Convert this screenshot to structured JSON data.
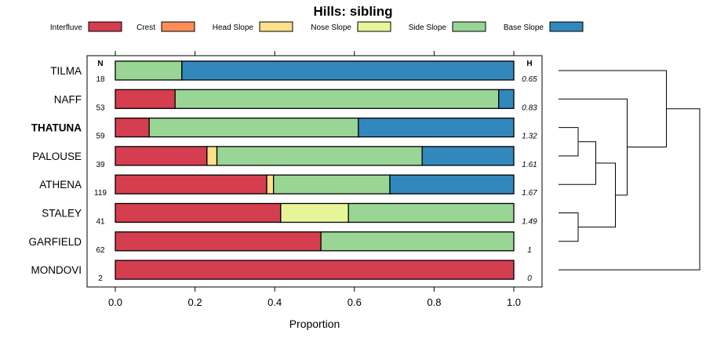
{
  "chart_data": {
    "type": "bar",
    "orientation": "horizontal",
    "stacked": true,
    "title": "Hills: sibling",
    "xlabel": "Proportion",
    "ylabel": "",
    "xlim": [
      0,
      1
    ],
    "x_ticks": [
      "0.0",
      "0.2",
      "0.4",
      "0.6",
      "0.8",
      "1.0"
    ],
    "legend_position": "top",
    "n_header": "N",
    "h_header": "H",
    "categories": [
      "TILMA",
      "NAFF",
      "THATUNA",
      "PALOUSE",
      "ATHENA",
      "STALEY",
      "GARFIELD",
      "MONDOVI"
    ],
    "emphasized_category": "THATUNA",
    "n_values": [
      "18",
      "53",
      "59",
      "39",
      "119",
      "41",
      "62",
      "2"
    ],
    "h_values": [
      "0.65",
      "0.83",
      "1.32",
      "1.61",
      "1.67",
      "1.49",
      "1",
      "0"
    ],
    "series": [
      {
        "name": "Interfluve",
        "color": "#d53e4f",
        "values": [
          0,
          0.15,
          0.085,
          0.23,
          0.38,
          0.415,
          0.516,
          1.0
        ]
      },
      {
        "name": "Crest",
        "color": "#fc8d59",
        "values": [
          0,
          0,
          0,
          0,
          0,
          0,
          0,
          0
        ]
      },
      {
        "name": "Head Slope",
        "color": "#fee08b",
        "values": [
          0,
          0,
          0,
          0.025,
          0.017,
          0,
          0,
          0
        ]
      },
      {
        "name": "Nose Slope",
        "color": "#e6f598",
        "values": [
          0,
          0,
          0,
          0,
          0,
          0.17,
          0,
          0
        ]
      },
      {
        "name": "Side Slope",
        "color": "#99d594",
        "values": [
          0.167,
          0.812,
          0.525,
          0.515,
          0.292,
          0.415,
          0.484,
          0
        ]
      },
      {
        "name": "Base Slope",
        "color": "#3288bd",
        "values": [
          0.833,
          0.038,
          0.39,
          0.23,
          0.311,
          0,
          0,
          0
        ]
      }
    ],
    "dendrogram": {
      "leaf_order": [
        "TILMA",
        "NAFF",
        "THATUNA",
        "PALOUSE",
        "ATHENA",
        "STALEY",
        "GARFIELD",
        "MONDOVI"
      ],
      "merges": [
        {
          "left": "THATUNA",
          "right": "PALOUSE",
          "height": 0.1
        },
        {
          "left": "STALEY",
          "right": "GARFIELD",
          "height": 0.1
        },
        {
          "left": "THATUNA+PALOUSE",
          "right": "ATHENA",
          "height": 0.19
        },
        {
          "left": "THATUNA+PALOUSE+ATHENA",
          "right": "STALEY+GARFIELD",
          "height": 0.29
        },
        {
          "left": "NAFF",
          "right": "THATUNA+PALOUSE+ATHENA+STALEY+GARFIELD",
          "height": 0.35
        },
        {
          "left": "TILMA",
          "right": "NAFF+THATUNA+PALOUSE+ATHENA+STALEY+GARFIELD",
          "height": 0.55
        },
        {
          "left": "TILMA+NAFF+THATUNA+PALOUSE+ATHENA+STALEY+GARFIELD",
          "right": "MONDOVI",
          "height": 0.72
        }
      ]
    }
  }
}
